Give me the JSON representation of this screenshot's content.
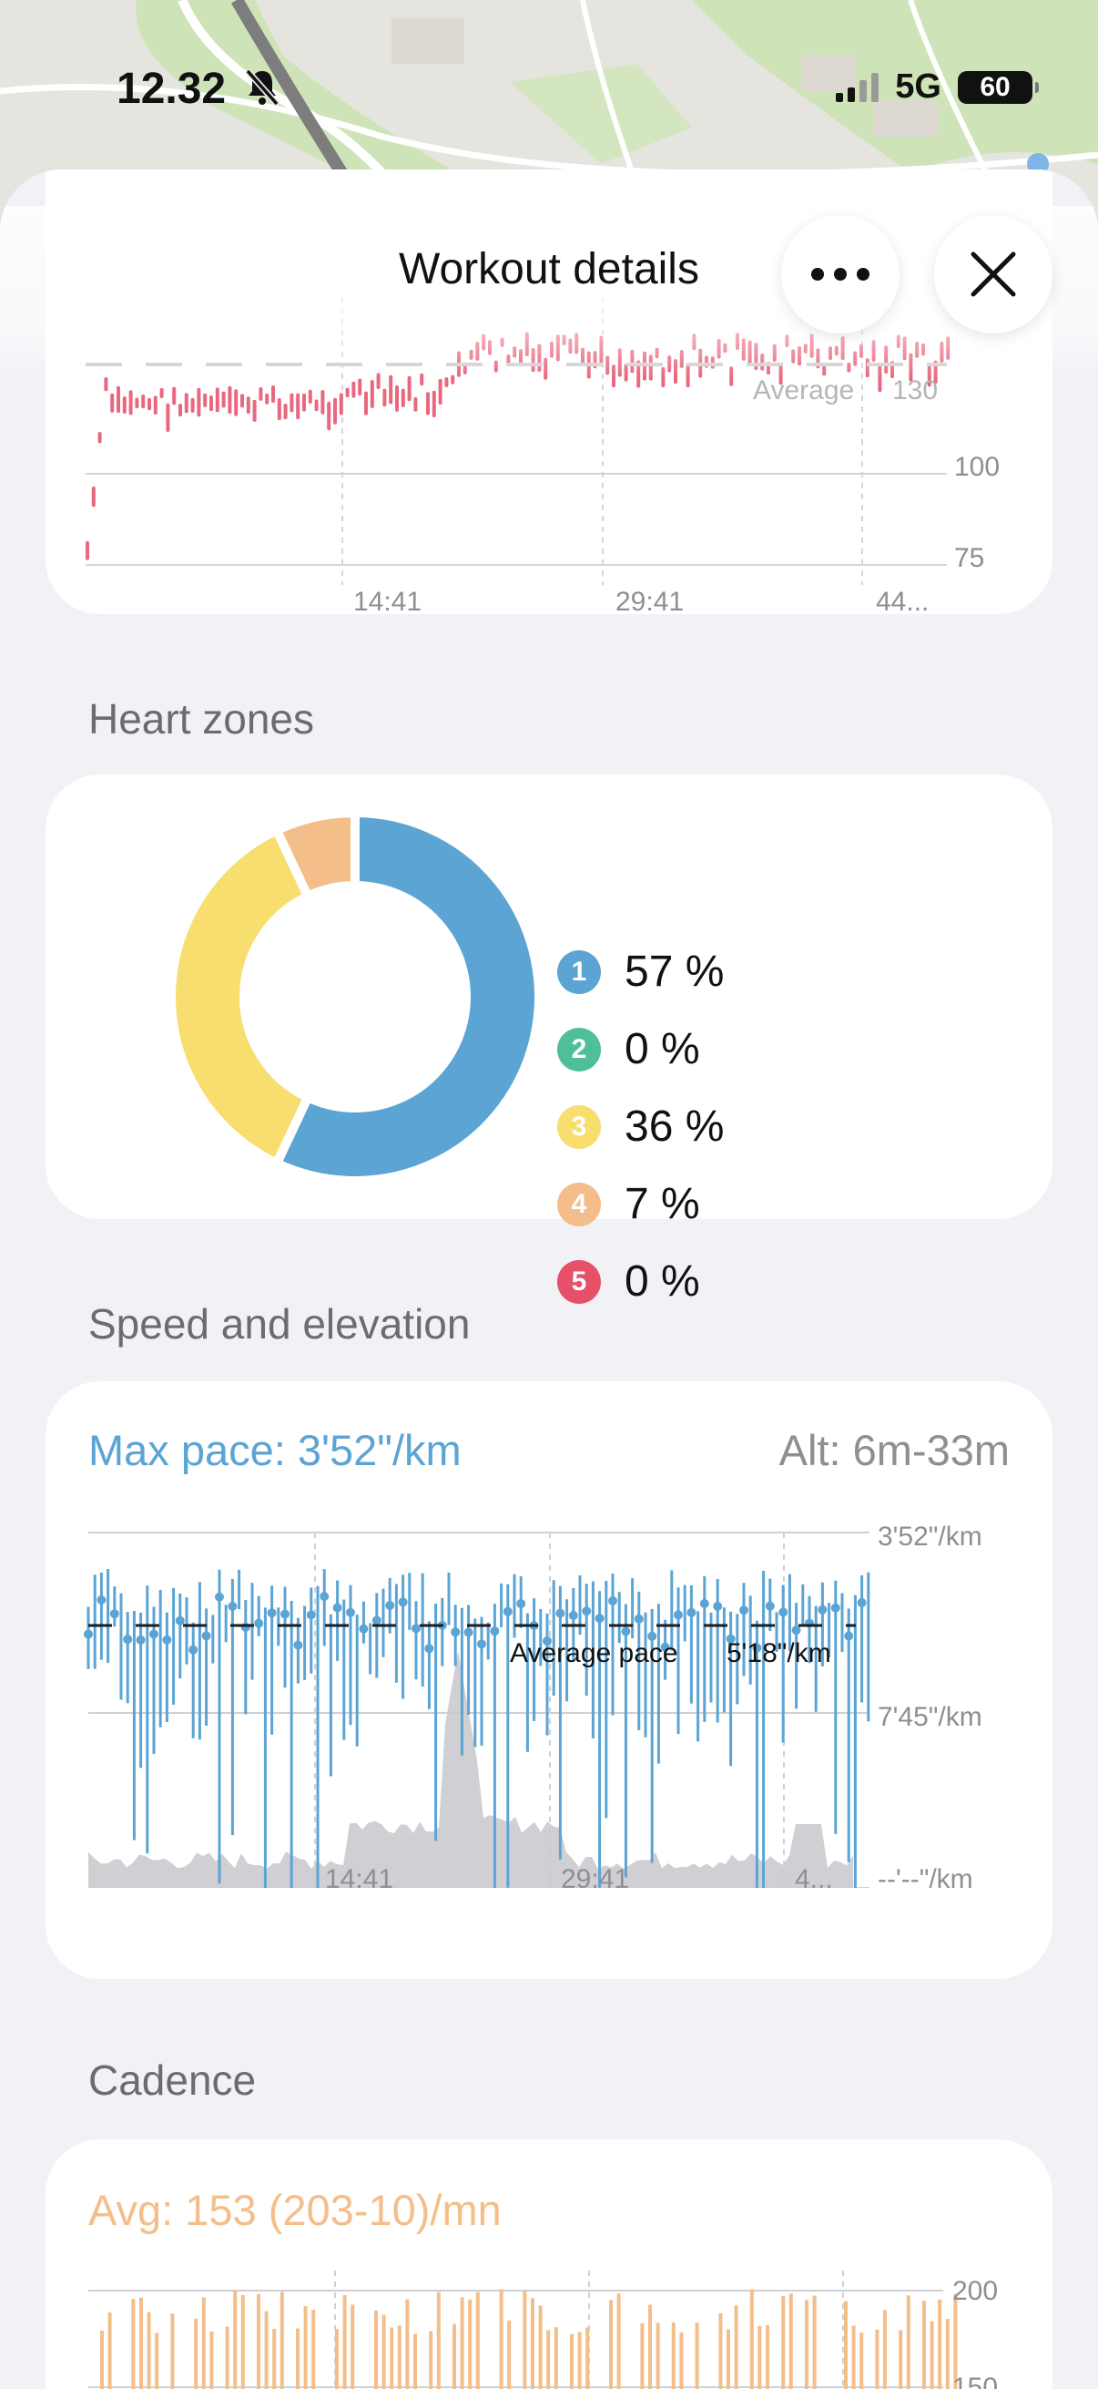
{
  "status_bar": {
    "time": "12.32",
    "network": "5G",
    "battery": "60"
  },
  "header": {
    "title": "Workout details"
  },
  "heart_rate_chart": {
    "average_label": "Average",
    "average_value": "130",
    "y_ticks": [
      "100",
      "75"
    ],
    "x_ticks": [
      "14:41",
      "29:41",
      "44..."
    ],
    "color": "#e8687e"
  },
  "heart_zones": {
    "title": "Heart zones",
    "zones": [
      {
        "label": "1",
        "value": "57 %",
        "color": "#5ba4d4"
      },
      {
        "label": "2",
        "value": "0 %",
        "color": "#4fbf97"
      },
      {
        "label": "3",
        "value": "36 %",
        "color": "#f8dd6f"
      },
      {
        "label": "4",
        "value": "7 %",
        "color": "#f4be8a"
      },
      {
        "label": "5",
        "value": "0 %",
        "color": "#e65068"
      }
    ]
  },
  "speed_elevation": {
    "title": "Speed and elevation",
    "max_pace": "Max pace: 3'52\"/km",
    "altitude": "Alt: 6m-33m",
    "average_label": "Average pace",
    "average_value": "5'18\"/km",
    "y_ticks": [
      "3'52\"/km",
      "7'45\"/km",
      "--'--\"/km"
    ],
    "x_ticks": [
      "14:41",
      "29:41",
      "4..."
    ],
    "color": "#5ba4d4"
  },
  "cadence": {
    "title": "Cadence",
    "avg": "Avg: 153 (203-10)/mn",
    "y_ticks": [
      "200",
      "150"
    ],
    "color": "#f4be8a"
  }
}
